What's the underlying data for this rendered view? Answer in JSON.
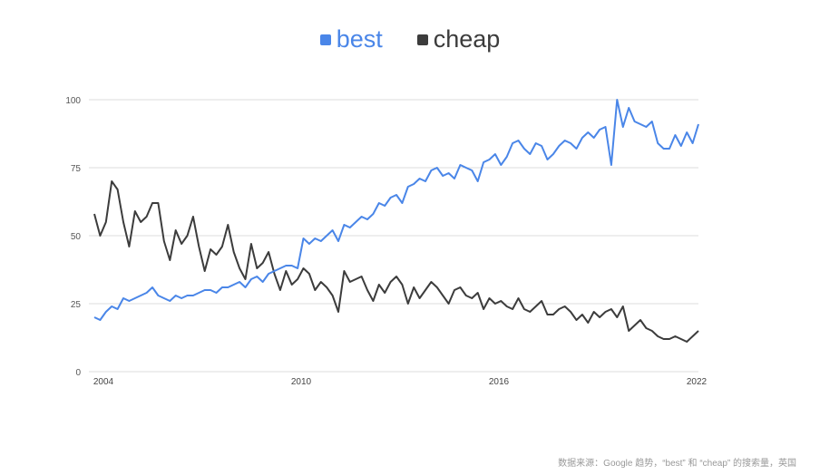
{
  "legend": {
    "best": {
      "label": "best",
      "color": "#4a86e8"
    },
    "cheap": {
      "label": "cheap",
      "color": "#3c3c3c"
    }
  },
  "source": "数据来源：Google 趋势，“best” 和 “cheap” 的搜索量，英国",
  "chart_data": {
    "type": "line",
    "title": "",
    "xlabel": "",
    "ylabel": "",
    "ylim": [
      0,
      100
    ],
    "yticks": [
      0,
      25,
      50,
      75,
      100
    ],
    "xticks": [
      "2004",
      "2010",
      "2016",
      "2022"
    ],
    "x_range": [
      2004.0,
      2022.3
    ],
    "grid": true,
    "legend_position": "top",
    "x_step_years": 0.25,
    "series": [
      {
        "name": "best",
        "color": "#4a86e8",
        "values": [
          20,
          19,
          22,
          24,
          23,
          27,
          26,
          27,
          28,
          29,
          31,
          28,
          27,
          26,
          28,
          27,
          28,
          28,
          29,
          30,
          30,
          29,
          31,
          31,
          32,
          33,
          31,
          34,
          35,
          33,
          36,
          37,
          38,
          39,
          39,
          38,
          49,
          47,
          49,
          48,
          50,
          52,
          48,
          54,
          53,
          55,
          57,
          56,
          58,
          62,
          61,
          64,
          65,
          62,
          68,
          69,
          71,
          70,
          74,
          75,
          72,
          73,
          71,
          76,
          75,
          74,
          70,
          77,
          78,
          80,
          76,
          79,
          84,
          85,
          82,
          80,
          84,
          83,
          78,
          80,
          83,
          85,
          84,
          82,
          86,
          88,
          86,
          89,
          90,
          76,
          100,
          90,
          97,
          92,
          91,
          90,
          92,
          84,
          82,
          82,
          87,
          83,
          88,
          84,
          91
        ]
      },
      {
        "name": "cheap",
        "color": "#3c3c3c",
        "values": [
          58,
          50,
          55,
          70,
          67,
          55,
          46,
          59,
          55,
          57,
          62,
          62,
          48,
          41,
          52,
          47,
          50,
          57,
          46,
          37,
          45,
          43,
          46,
          54,
          44,
          38,
          34,
          47,
          38,
          40,
          44,
          36,
          30,
          37,
          32,
          34,
          38,
          36,
          30,
          33,
          31,
          28,
          22,
          37,
          33,
          34,
          35,
          30,
          26,
          32,
          29,
          33,
          35,
          32,
          25,
          31,
          27,
          30,
          33,
          31,
          28,
          25,
          30,
          31,
          28,
          27,
          29,
          23,
          27,
          25,
          26,
          24,
          23,
          27,
          23,
          22,
          24,
          26,
          21,
          21,
          23,
          24,
          22,
          19,
          21,
          18,
          22,
          20,
          22,
          23,
          20,
          24,
          15,
          17,
          19,
          16,
          15,
          13,
          12,
          12,
          13,
          12,
          11,
          13,
          15
        ]
      }
    ]
  }
}
